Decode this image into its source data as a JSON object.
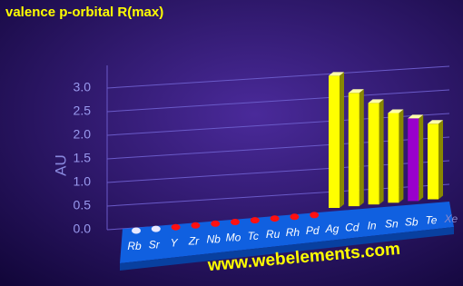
{
  "chart_data": {
    "type": "bar3d",
    "title": "valence p-orbital R(max)",
    "y_label": "AU",
    "watermark": "www.webelements.com",
    "categories": [
      "Rb",
      "Sr",
      "Y",
      "Zr",
      "Nb",
      "Mo",
      "Tc",
      "Ru",
      "Rh",
      "Pd",
      "Ag",
      "Cd",
      "In",
      "Sn",
      "Sb",
      "Te",
      "Xe"
    ],
    "values": [
      null,
      null,
      null,
      null,
      null,
      null,
      null,
      null,
      null,
      null,
      2.8,
      2.4,
      2.15,
      1.9,
      1.75,
      1.6,
      null
    ],
    "colors": [
      "#e8e8ff",
      "#e8e8ff",
      "#ff1010",
      "#ff1010",
      "#ff1010",
      "#ff1010",
      "#ff1010",
      "#ff1010",
      "#ff1010",
      "#ff1010",
      "#ffff00",
      "#ffff00",
      "#ffff00",
      "#ffff00",
      "#9900cc",
      "#ffff00",
      "#ffff00"
    ],
    "ylim": [
      0,
      3
    ],
    "yticks": [
      {
        "value": 0,
        "label": "0.0"
      },
      0.5,
      {
        "value": 1,
        "label": "1.0"
      },
      1.5,
      {
        "value": 2,
        "label": "2.0"
      },
      2.5,
      {
        "value": 3,
        "label": "3.0"
      }
    ],
    "grid": true
  }
}
